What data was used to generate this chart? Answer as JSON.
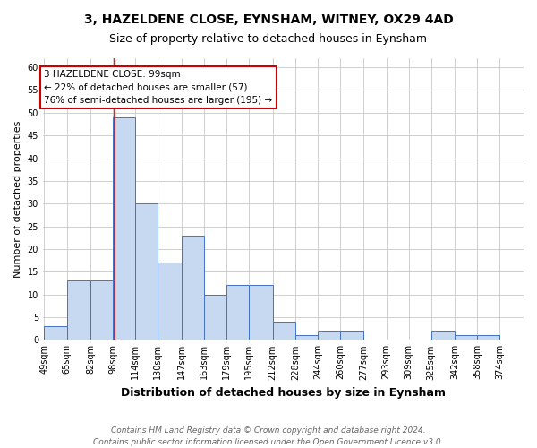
{
  "title": "3, HAZELDENE CLOSE, EYNSHAM, WITNEY, OX29 4AD",
  "subtitle": "Size of property relative to detached houses in Eynsham",
  "xlabel": "Distribution of detached houses by size in Eynsham",
  "ylabel": "Number of detached properties",
  "bins": [
    49,
    65,
    82,
    98,
    114,
    130,
    147,
    163,
    179,
    195,
    212,
    228,
    244,
    260,
    277,
    293,
    309,
    325,
    342,
    358,
    374
  ],
  "bar_heights": [
    3,
    13,
    13,
    49,
    30,
    17,
    23,
    10,
    12,
    12,
    4,
    1,
    2,
    2,
    0,
    0,
    0,
    2,
    1,
    1
  ],
  "bar_color": "#c6d9f1",
  "bar_edge_color": "#4472c4",
  "red_line_x": 99,
  "annotation_title": "3 HAZELDENE CLOSE: 99sqm",
  "annotation_line1": "← 22% of detached houses are smaller (57)",
  "annotation_line2": "76% of semi-detached houses are larger (195) →",
  "annotation_box_color": "#ffffff",
  "annotation_box_edge": "#cc0000",
  "red_line_color": "#cc0000",
  "ylim": [
    0,
    62
  ],
  "yticks": [
    0,
    5,
    10,
    15,
    20,
    25,
    30,
    35,
    40,
    45,
    50,
    55,
    60
  ],
  "footer1": "Contains HM Land Registry data © Crown copyright and database right 2024.",
  "footer2": "Contains public sector information licensed under the Open Government Licence v3.0.",
  "background_color": "#ffffff",
  "grid_color": "#c8c8c8",
  "title_fontsize": 10,
  "subtitle_fontsize": 9,
  "xlabel_fontsize": 9,
  "ylabel_fontsize": 8,
  "tick_fontsize": 7,
  "annotation_fontsize": 7.5,
  "footer_fontsize": 6.5
}
